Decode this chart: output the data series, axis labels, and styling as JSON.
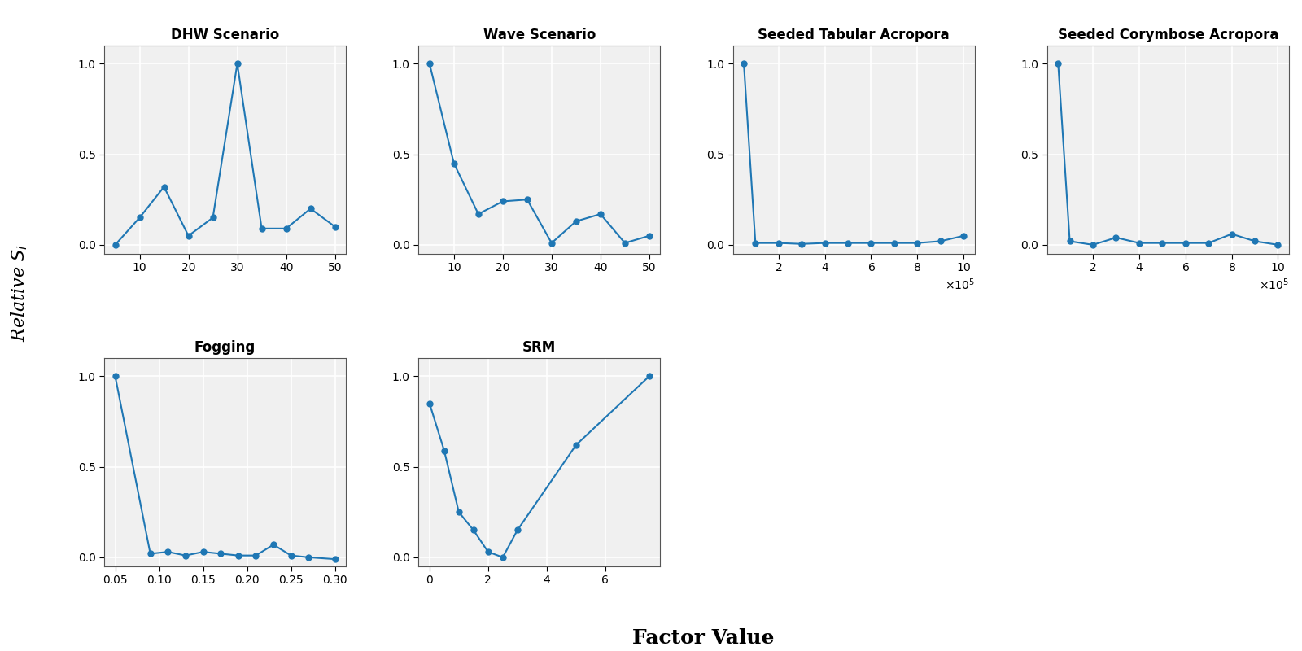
{
  "subplots": [
    {
      "title": "DHW Scenario",
      "x": [
        5,
        10,
        15,
        20,
        25,
        30,
        35,
        40,
        45,
        50
      ],
      "y": [
        0.0,
        0.15,
        0.32,
        0.05,
        0.15,
        1.0,
        0.09,
        0.09,
        0.2,
        0.1
      ],
      "row": 0,
      "col": 0,
      "sci_notation": false
    },
    {
      "title": "Wave Scenario",
      "x": [
        5,
        10,
        15,
        20,
        25,
        30,
        35,
        40,
        45,
        50
      ],
      "y": [
        1.0,
        0.45,
        0.17,
        0.24,
        0.25,
        0.01,
        0.13,
        0.17,
        0.01,
        0.05
      ],
      "row": 0,
      "col": 1,
      "sci_notation": false
    },
    {
      "title": "Seeded Tabular Acropora",
      "x": [
        50000,
        200000,
        400000,
        600000,
        800000,
        1000000
      ],
      "x_full": [
        50000,
        100000,
        200000,
        300000,
        400000,
        500000,
        600000,
        700000,
        800000,
        900000,
        1000000
      ],
      "y": [
        1.0,
        0.01,
        0.01,
        0.005,
        0.01,
        0.01,
        0.01,
        0.01,
        0.01,
        0.02,
        0.05
      ],
      "row": 0,
      "col": 2,
      "sci_notation": true
    },
    {
      "title": "Seeded Corymbose Acropora",
      "x": [
        50000,
        200000,
        400000,
        600000,
        800000,
        1000000
      ],
      "x_full": [
        50000,
        100000,
        200000,
        300000,
        400000,
        500000,
        600000,
        700000,
        800000,
        900000,
        1000000
      ],
      "y": [
        1.0,
        0.02,
        0.0,
        0.04,
        0.01,
        0.01,
        0.01,
        0.01,
        0.06,
        0.02,
        0.0
      ],
      "row": 0,
      "col": 3,
      "sci_notation": true
    },
    {
      "title": "Fogging",
      "x": [
        0.05,
        0.09,
        0.11,
        0.13,
        0.15,
        0.17,
        0.19,
        0.21,
        0.23,
        0.25,
        0.27,
        0.3
      ],
      "y": [
        1.0,
        0.02,
        0.03,
        0.01,
        0.03,
        0.02,
        0.01,
        0.01,
        0.07,
        0.01,
        0.0,
        -0.01
      ],
      "row": 1,
      "col": 0,
      "sci_notation": false
    },
    {
      "title": "SRM",
      "x": [
        0.0,
        0.5,
        1.0,
        1.5,
        2.0,
        2.5,
        3.0,
        5.0,
        7.5
      ],
      "y": [
        0.85,
        0.59,
        0.25,
        0.15,
        0.03,
        0.0,
        0.15,
        0.62,
        1.0
      ],
      "row": 1,
      "col": 1,
      "sci_notation": false
    }
  ],
  "line_color": "#1f77b4",
  "marker": "o",
  "marker_size": 5,
  "linewidth": 1.5,
  "xlabel": "Factor Value",
  "ylabel": "Relative $S_i$",
  "background_color": "#f0f0f0",
  "grid_color": "white",
  "title_fontsize": 12,
  "label_fontsize": 15,
  "tick_fontsize": 10,
  "fig_facecolor": "white"
}
